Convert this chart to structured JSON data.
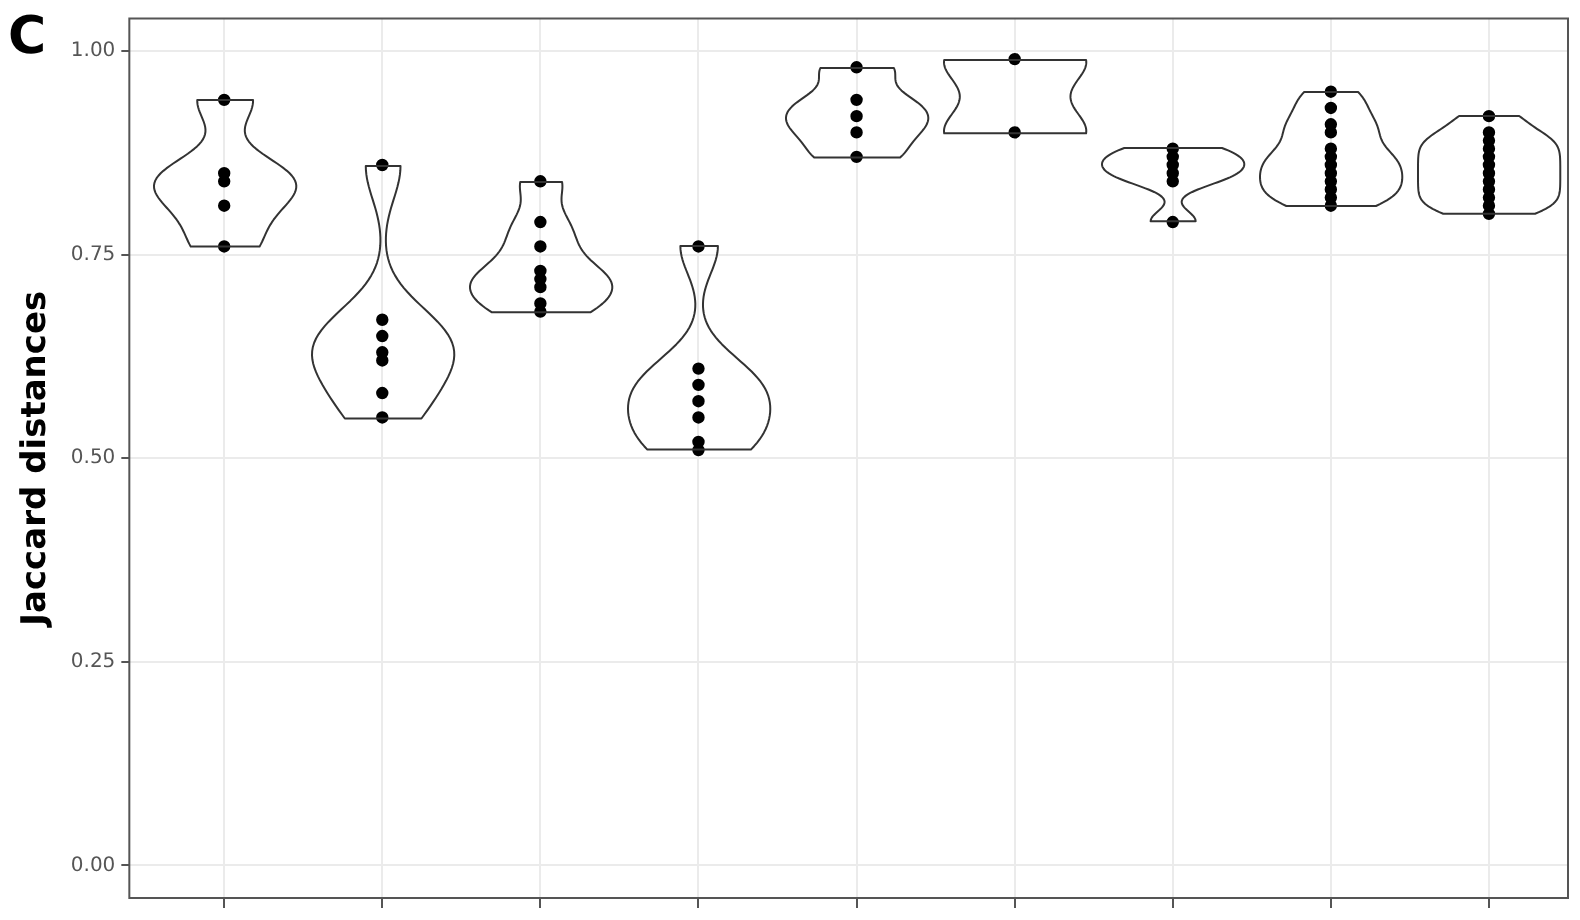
{
  "chart_data": {
    "type": "scatter",
    "title": "C",
    "ylabel": "Jaccard distances",
    "categories": [
      null,
      null,
      null,
      null,
      null,
      null,
      null,
      null,
      null
    ],
    "ylim": [
      -0.04,
      1.04
    ],
    "yticks": [
      {
        "value": 0,
        "label": "0.00"
      },
      {
        "value": 0.25,
        "label": "0.25"
      },
      {
        "value": 0.5,
        "label": "0.50"
      },
      {
        "value": 0.75,
        "label": "0.75"
      },
      {
        "value": 1,
        "label": "1.00"
      }
    ],
    "tick_labels": "y",
    "grid": true,
    "legend": false,
    "marker": "circle",
    "series": [
      {
        "color": "#000000",
        "values": [
          0.94,
          0.86,
          0.84,
          0.76,
          0.98,
          0.99,
          0.88,
          0.95,
          0.92
        ]
      },
      {
        "color": "#000000",
        "values": [
          0.85,
          0.67,
          0.79,
          0.61,
          0.94,
          0.9,
          0.87,
          0.93,
          0.9
        ]
      },
      {
        "color": "#000000",
        "values": [
          0.84,
          0.65,
          0.76,
          0.59,
          0.92,
          null,
          0.86,
          0.91,
          0.89
        ]
      },
      {
        "color": "#000000",
        "values": [
          0.81,
          0.63,
          0.73,
          0.57,
          0.9,
          null,
          0.85,
          0.9,
          0.88
        ]
      },
      {
        "color": "#000000",
        "values": [
          0.76,
          0.62,
          0.72,
          0.55,
          0.87,
          null,
          0.84,
          0.88,
          0.87
        ]
      },
      {
        "color": "#000000",
        "values": [
          null,
          0.58,
          0.71,
          0.52,
          null,
          null,
          0.79,
          0.87,
          0.86
        ]
      },
      {
        "color": "#000000",
        "values": [
          null,
          0.55,
          0.69,
          0.51,
          null,
          null,
          null,
          0.86,
          0.85
        ]
      },
      {
        "color": "#000000",
        "values": [
          null,
          null,
          0.68,
          null,
          null,
          null,
          null,
          0.85,
          0.84
        ]
      },
      {
        "color": "#000000",
        "values": [
          null,
          null,
          null,
          null,
          null,
          null,
          null,
          0.84,
          0.83
        ]
      },
      {
        "color": "#000000",
        "values": [
          null,
          null,
          null,
          null,
          null,
          null,
          null,
          0.83,
          0.82
        ]
      },
      {
        "color": "#000000",
        "values": [
          null,
          null,
          null,
          null,
          null,
          null,
          null,
          0.82,
          0.81
        ]
      },
      {
        "color": "#000000",
        "values": [
          null,
          null,
          null,
          null,
          null,
          null,
          null,
          0.81,
          0.8
        ]
      }
    ]
  }
}
